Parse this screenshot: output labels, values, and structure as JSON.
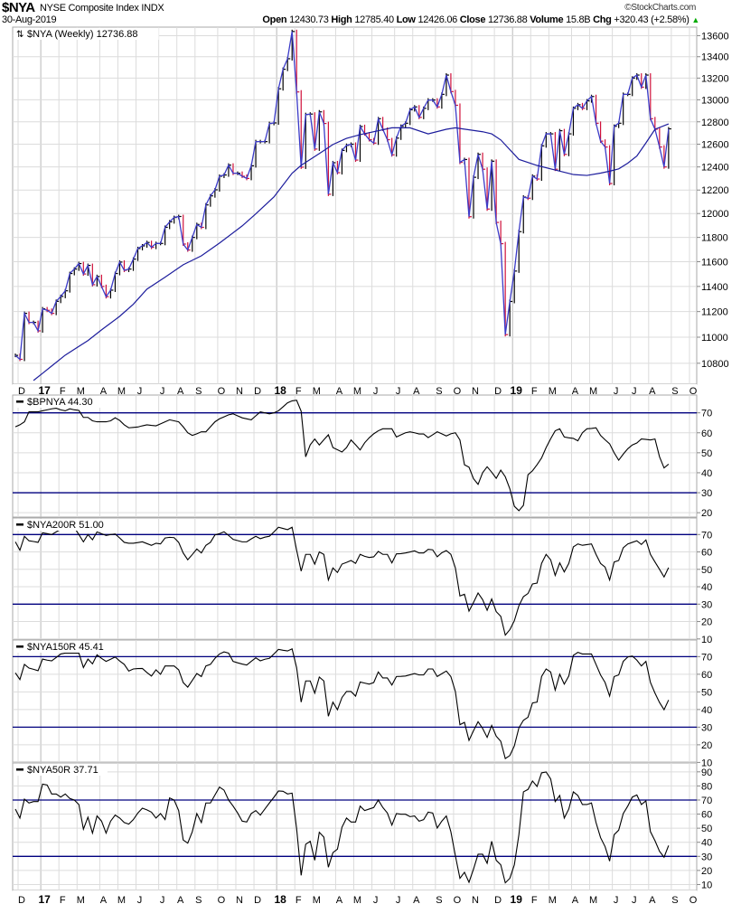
{
  "header": {
    "symbol": "$NYA",
    "name": "NYSE Composite Index",
    "exchange": "INDX",
    "copyright": "©StockCharts.com",
    "date": "30-Aug-2019",
    "open_label": "Open",
    "open": "12430.73",
    "high_label": "High",
    "high": "12785.40",
    "low_label": "Low",
    "low": "12426.06",
    "close_label": "Close",
    "close": "12736.88",
    "volume_label": "Volume",
    "volume": "15.8B",
    "chg_label": "Chg",
    "chg": "+320.43 (+2.58%)",
    "chg_arrow": "▲"
  },
  "colors": {
    "price_line": "#3b3bc8",
    "ma_line": "#1c1c9c",
    "up_bar": "#000000",
    "down_bar": "#d0103a",
    "reference_lines": "#00007f",
    "indicator_line": "#000000",
    "grid": "#dcdcdc",
    "chg_up": "#00aa00"
  },
  "chart_data": [
    {
      "type": "line",
      "title": "$NYA (Weekly) 12736.88",
      "frequency": "weekly",
      "first_date": "2016-11-25",
      "scale": "log",
      "ylim": [
        10642,
        13682
      ],
      "yticks": [
        10800,
        11000,
        11200,
        11400,
        11600,
        11800,
        12000,
        12200,
        12400,
        12600,
        12800,
        13000,
        13200,
        13400,
        13600
      ],
      "grid": true,
      "series": [
        {
          "kind": "close",
          "values": [
            10860,
            10830,
            11186,
            11115,
            11115,
            11049,
            11222,
            11210,
            11186,
            11281,
            11320,
            11365,
            11504,
            11540,
            11585,
            11500,
            11570,
            11414,
            11480,
            11400,
            11318,
            11370,
            11504,
            11597,
            11530,
            11540,
            11621,
            11708,
            11730,
            11758,
            11718,
            11750,
            11750,
            11884,
            11930,
            11967,
            11975,
            11745,
            11696,
            11800,
            11908,
            11884,
            12073,
            12150,
            12202,
            12319,
            12330,
            12416,
            12345,
            12345,
            12319,
            12300,
            12410,
            12623,
            12623,
            12623,
            12785,
            12790,
            13101,
            13282,
            13381,
            13640,
            13072,
            12398,
            12866,
            12870,
            12557,
            12890,
            12785,
            12164,
            12437,
            12350,
            12545,
            12590,
            12600,
            12460,
            12758,
            12692,
            12640,
            12610,
            12828,
            12733,
            12640,
            12506,
            12654,
            12760,
            12787,
            12909,
            12935,
            12840,
            12922,
            12998,
            12998,
            12935,
            13050,
            13228,
            13075,
            12950,
            12440,
            12465,
            11973,
            12310,
            12510,
            12380,
            12038,
            12450,
            11925,
            11748,
            11020,
            11280,
            11524,
            11848,
            12140,
            12130,
            12320,
            12295,
            12585,
            12692,
            12692,
            12380,
            12720,
            12510,
            12692,
            12922,
            12955,
            12922,
            12990,
            13030,
            12787,
            12627,
            12575,
            12256,
            12760,
            12787,
            13050,
            13050,
            13200,
            13228,
            13116,
            13228,
            12828,
            12733,
            12575,
            12400,
            12736.88
          ]
        },
        {
          "kind": "moving_average",
          "points": [
            [
              "2016-12-23",
              10670
            ],
            [
              "2017-01-06",
              10724
            ],
            [
              "2017-01-20",
              10779
            ],
            [
              "2017-02-10",
              10862
            ],
            [
              "2017-03-17",
              10974
            ],
            [
              "2017-04-07",
              11057
            ],
            [
              "2017-05-05",
              11163
            ],
            [
              "2017-05-26",
              11258
            ],
            [
              "2017-06-16",
              11378
            ],
            [
              "2017-07-14",
              11474
            ],
            [
              "2017-08-11",
              11575
            ],
            [
              "2017-09-08",
              11648
            ],
            [
              "2017-10-06",
              11753
            ],
            [
              "2017-11-10",
              11896
            ],
            [
              "2017-12-01",
              11997
            ],
            [
              "2017-12-29",
              12141
            ],
            [
              "2018-01-26",
              12345
            ],
            [
              "2018-02-09",
              12414
            ],
            [
              "2018-03-09",
              12517
            ],
            [
              "2018-03-30",
              12597
            ],
            [
              "2018-04-20",
              12652
            ],
            [
              "2018-05-11",
              12685
            ],
            [
              "2018-06-29",
              12746
            ],
            [
              "2018-07-27",
              12746
            ],
            [
              "2018-08-24",
              12692
            ],
            [
              "2018-09-21",
              12733
            ],
            [
              "2018-10-05",
              12746
            ],
            [
              "2018-11-16",
              12711
            ],
            [
              "2018-11-30",
              12692
            ],
            [
              "2018-12-14",
              12638
            ],
            [
              "2019-01-11",
              12466
            ],
            [
              "2019-02-08",
              12413
            ],
            [
              "2019-03-08",
              12373
            ],
            [
              "2019-04-05",
              12334
            ],
            [
              "2019-04-26",
              12326
            ],
            [
              "2019-05-17",
              12346
            ],
            [
              "2019-05-31",
              12363
            ],
            [
              "2019-06-14",
              12383
            ],
            [
              "2019-06-28",
              12433
            ],
            [
              "2019-07-12",
              12496
            ],
            [
              "2019-07-26",
              12611
            ],
            [
              "2019-08-09",
              12733
            ],
            [
              "2019-08-30",
              12781
            ]
          ]
        }
      ]
    },
    {
      "type": "line",
      "title": "$BPNYA 44.30",
      "frequency": "weekly",
      "first_date": "2016-11-25",
      "ylim": [
        17.8,
        78.9
      ],
      "yticks": [
        20,
        30,
        40,
        50,
        60,
        70
      ],
      "reference_lines": [
        70,
        30
      ],
      "values": [
        63,
        64,
        65.5,
        70.5,
        70.5,
        70.5,
        71,
        71.5,
        72,
        72.3,
        71.5,
        71,
        72,
        71.5,
        71.2,
        67.7,
        67.7,
        66,
        65.5,
        65.5,
        65.5,
        66,
        67.5,
        66.2,
        64,
        62.5,
        62.7,
        62.9,
        63.5,
        64,
        63.7,
        63.5,
        64.5,
        65.5,
        66.5,
        66,
        65.5,
        63,
        60,
        58.7,
        59.5,
        60.5,
        60.5,
        63,
        65.5,
        67,
        68,
        69,
        69.5,
        68.5,
        67.5,
        67,
        66.5,
        68.5,
        70.5,
        70,
        69.5,
        70,
        71,
        73,
        75,
        76,
        76.3,
        70.8,
        48,
        54,
        56.9,
        53.9,
        56.5,
        59,
        52.6,
        51.5,
        50.4,
        52.6,
        56.4,
        54,
        51.4,
        55,
        57.5,
        59.5,
        61,
        62,
        62,
        62,
        57.9,
        59,
        60,
        60.5,
        60,
        59.4,
        59.4,
        57.6,
        59,
        60.5,
        59.5,
        58.4,
        59.5,
        60,
        56.4,
        44,
        42.8,
        37,
        34.2,
        40,
        43,
        40.3,
        37.2,
        41.3,
        38,
        32,
        23.2,
        21,
        23.7,
        39,
        41,
        44,
        47.4,
        52.6,
        57,
        61,
        62,
        57.9,
        57.5,
        57.2,
        56,
        60,
        62,
        62.2,
        62.5,
        58.7,
        56.5,
        54.5,
        50,
        46.3,
        49.3,
        52,
        53.9,
        54.9,
        56.9,
        56.7,
        56.4,
        56.9,
        48,
        42.4,
        44.3
      ]
    },
    {
      "type": "line",
      "title": "$NYA200R 51.00",
      "frequency": "weekly",
      "first_date": "2016-11-25",
      "ylim": [
        9.9,
        79.5
      ],
      "yticks": [
        10,
        20,
        30,
        40,
        50,
        60,
        70
      ],
      "reference_lines": [
        70,
        30
      ],
      "values": [
        65.8,
        61,
        69,
        66.4,
        66,
        65.5,
        71,
        70.5,
        70,
        71.5,
        73,
        73.5,
        73.8,
        74,
        70,
        65.8,
        70,
        67,
        71.5,
        70.5,
        69.5,
        70,
        70.3,
        68,
        65.5,
        65,
        65,
        65.4,
        65.8,
        64.8,
        63.8,
        65,
        64.6,
        68,
        68.4,
        68.2,
        65.5,
        59.4,
        55.5,
        58.5,
        61.7,
        59.4,
        63.8,
        65.5,
        69.8,
        70.5,
        71.6,
        69.5,
        67.2,
        66.5,
        65.8,
        65.8,
        67.5,
        69,
        67.6,
        68.5,
        69,
        71.5,
        74.2,
        73.5,
        72.8,
        74.2,
        61,
        49,
        58.6,
        58.6,
        53,
        60,
        58.6,
        43.9,
        50.8,
        48.2,
        53,
        54,
        55.1,
        53.4,
        58.6,
        57.5,
        56.8,
        57.2,
        60.3,
        58.6,
        58.6,
        53.7,
        58.9,
        59,
        59.4,
        60,
        60.6,
        59.4,
        59.4,
        61.5,
        61.2,
        57.2,
        59.5,
        60.8,
        58.6,
        50.8,
        34.7,
        35.7,
        26,
        31,
        36.4,
        32.6,
        26.5,
        33,
        25.7,
        23,
        12.2,
        15.3,
        20.5,
        29.1,
        34.3,
        36.1,
        41.6,
        42.1,
        53.4,
        58.6,
        55.5,
        46.5,
        53.7,
        48.5,
        53.4,
        62.9,
        64.6,
        63.8,
        64.2,
        64.6,
        58.6,
        53.4,
        51.3,
        43.9,
        54.2,
        55.1,
        62.4,
        64.6,
        65.5,
        66.4,
        64.3,
        66.9,
        58.6,
        54.2,
        50,
        45.6,
        51
      ]
    },
    {
      "type": "line",
      "title": "$NYA150R 45.41",
      "frequency": "weekly",
      "first_date": "2016-11-25",
      "ylim": [
        10.2,
        79.4
      ],
      "yticks": [
        10,
        20,
        30,
        40,
        50,
        60,
        70
      ],
      "reference_lines": [
        70,
        30
      ],
      "values": [
        60.8,
        57,
        65.6,
        63.5,
        62.8,
        62,
        68.6,
        68,
        67.6,
        69.5,
        71.5,
        72,
        72,
        72,
        72,
        63.8,
        68.6,
        65.9,
        71,
        69,
        67.3,
        68.5,
        69.8,
        67.5,
        65.6,
        61.8,
        63,
        63.2,
        63.3,
        61,
        59,
        62.5,
        60,
        64.7,
        64.7,
        64.7,
        62.5,
        55.3,
        52.7,
        56.5,
        60.4,
        58.7,
        64.7,
        65.6,
        69,
        71.5,
        72.7,
        72,
        67.3,
        66.5,
        65.8,
        65.2,
        67.3,
        69.3,
        67.6,
        68.5,
        69,
        71.5,
        74.1,
        73.6,
        73.2,
        74.4,
        63.8,
        44.2,
        56.2,
        56.2,
        49.3,
        58.4,
        56.2,
        36.2,
        44.2,
        39.9,
        46.8,
        50.2,
        50.2,
        47.6,
        55.6,
        55,
        54.4,
        55.3,
        61.3,
        57.9,
        57.9,
        53.9,
        58.7,
        58.8,
        59,
        59.7,
        60.4,
        59.6,
        59.6,
        63,
        63,
        58.7,
        60.3,
        61.8,
        58.7,
        50.2,
        31.4,
        32.7,
        22.5,
        28,
        33.1,
        29.3,
        24.2,
        31,
        24.9,
        22,
        12.2,
        13.9,
        19.4,
        29.6,
        33.9,
        35.6,
        43.7,
        44.2,
        58.7,
        63,
        61.3,
        51,
        60,
        54.4,
        59,
        70.7,
        72.4,
        71.5,
        71.5,
        71.5,
        65.6,
        59.6,
        55.3,
        47.6,
        58.7,
        59.6,
        67.3,
        69.8,
        70.3,
        68,
        64.7,
        67.3,
        55.3,
        49.3,
        44,
        39.9,
        45.41
      ]
    },
    {
      "type": "line",
      "title": "$NYA50R 37.71",
      "frequency": "weekly",
      "first_date": "2016-11-25",
      "ylim": [
        5.8,
        96.3
      ],
      "yticks": [
        10,
        20,
        30,
        40,
        50,
        60,
        70,
        80,
        90
      ],
      "reference_lines": [
        70,
        30
      ],
      "values": [
        63.6,
        57.2,
        70.6,
        67.9,
        68.9,
        68.9,
        81.3,
        80.7,
        74.3,
        74.3,
        72.1,
        74.3,
        71.1,
        70,
        66.8,
        49.3,
        57.8,
        46.5,
        58.7,
        55,
        46.5,
        55,
        59.3,
        57.2,
        54,
        52.9,
        56.1,
        60.8,
        64.2,
        63,
        61.4,
        57.2,
        60.4,
        56.1,
        71.5,
        70,
        62.5,
        41.6,
        39.4,
        47.5,
        60.4,
        54,
        67.9,
        67.9,
        73.6,
        79.2,
        77,
        70,
        65.7,
        60.8,
        55,
        54.4,
        60.4,
        62.5,
        59.3,
        63.6,
        67.9,
        72,
        76.4,
        76.2,
        74.3,
        74.9,
        49.7,
        16.5,
        38.6,
        40.7,
        27.2,
        47.1,
        43.7,
        22.3,
        32.6,
        35.1,
        50.7,
        57.2,
        54.4,
        54.4,
        65.7,
        62.5,
        63.6,
        64.7,
        70,
        64.7,
        60.8,
        52.2,
        60.4,
        59.9,
        59.9,
        58.2,
        58.7,
        55,
        56.1,
        61.4,
        60.8,
        50.1,
        55,
        58.7,
        47.5,
        30.4,
        14.4,
        18.7,
        11.6,
        21,
        31.5,
        31.5,
        25.1,
        40.7,
        27.2,
        24,
        11.2,
        14.4,
        24,
        45.4,
        75.8,
        77.5,
        83.5,
        79.6,
        89.3,
        89.9,
        85,
        68.9,
        73.2,
        57.2,
        63.6,
        75.8,
        73.2,
        66.8,
        66.8,
        67.9,
        54,
        43.3,
        36.9,
        26.6,
        45.4,
        48.6,
        60.4,
        65.7,
        72.1,
        73.6,
        66.8,
        69.4,
        47.5,
        41.1,
        33.6,
        29.4,
        37.71
      ]
    }
  ],
  "x_axis": {
    "labels": [
      {
        "label": "D",
        "date": "2016-12-02",
        "year": false
      },
      {
        "label": "17",
        "date": "2017-01-06",
        "year": true
      },
      {
        "label": "F",
        "date": "2017-02-03"
      },
      {
        "label": "M",
        "date": "2017-03-03"
      },
      {
        "label": "A",
        "date": "2017-04-07"
      },
      {
        "label": "M",
        "date": "2017-05-05"
      },
      {
        "label": "J",
        "date": "2017-06-02"
      },
      {
        "label": "J",
        "date": "2017-07-07"
      },
      {
        "label": "A",
        "date": "2017-08-04"
      },
      {
        "label": "S",
        "date": "2017-09-01"
      },
      {
        "label": "O",
        "date": "2017-10-06"
      },
      {
        "label": "N",
        "date": "2017-11-03"
      },
      {
        "label": "D",
        "date": "2017-12-01"
      },
      {
        "label": "18",
        "date": "2018-01-05",
        "year": true
      },
      {
        "label": "F",
        "date": "2018-02-02"
      },
      {
        "label": "M",
        "date": "2018-03-02"
      },
      {
        "label": "A",
        "date": "2018-04-06"
      },
      {
        "label": "M",
        "date": "2018-05-04"
      },
      {
        "label": "J",
        "date": "2018-06-01"
      },
      {
        "label": "J",
        "date": "2018-07-06"
      },
      {
        "label": "A",
        "date": "2018-08-03"
      },
      {
        "label": "S",
        "date": "2018-09-07"
      },
      {
        "label": "O",
        "date": "2018-10-05"
      },
      {
        "label": "N",
        "date": "2018-11-02"
      },
      {
        "label": "D",
        "date": "2018-12-07"
      },
      {
        "label": "19",
        "date": "2019-01-04",
        "year": true
      },
      {
        "label": "F",
        "date": "2019-02-01"
      },
      {
        "label": "M",
        "date": "2019-03-01"
      },
      {
        "label": "A",
        "date": "2019-04-05"
      },
      {
        "label": "M",
        "date": "2019-05-03"
      },
      {
        "label": "J",
        "date": "2019-06-07"
      },
      {
        "label": "J",
        "date": "2019-07-05"
      },
      {
        "label": "A",
        "date": "2019-08-02"
      },
      {
        "label": "S",
        "date": "2019-09-06"
      },
      {
        "label": "O",
        "date": "2019-10-04"
      }
    ]
  }
}
